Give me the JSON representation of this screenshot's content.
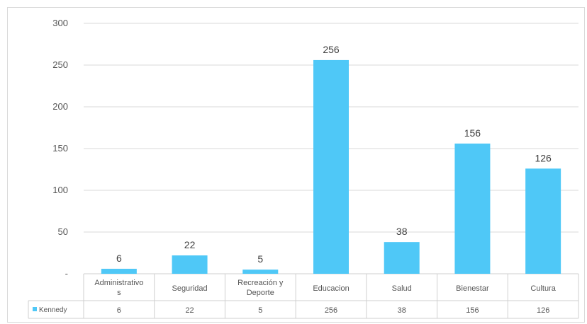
{
  "chart_data": {
    "type": "bar",
    "categories": [
      "Administrativos",
      "Seguridad",
      "Recreación y Deporte",
      "Educacion",
      "Salud",
      "Bienestar",
      "Cultura"
    ],
    "category_lines": [
      [
        "Administrativo",
        "s"
      ],
      [
        "Seguridad"
      ],
      [
        "Recreación y",
        "Deporte"
      ],
      [
        "Educacion"
      ],
      [
        "Salud"
      ],
      [
        "Bienestar"
      ],
      [
        "Cultura"
      ]
    ],
    "series": [
      {
        "name": "Kennedy",
        "values": [
          6,
          22,
          5,
          256,
          38,
          156,
          126
        ]
      }
    ],
    "y_ticks": [
      "300",
      "250",
      "200",
      "150",
      "100",
      "50",
      "-"
    ],
    "ylim": [
      0,
      300
    ],
    "grid": true,
    "data_labels": true,
    "legend": "data-table",
    "colors": {
      "bar": "#4fc8f7",
      "grid": "#d9d9d9"
    }
  }
}
